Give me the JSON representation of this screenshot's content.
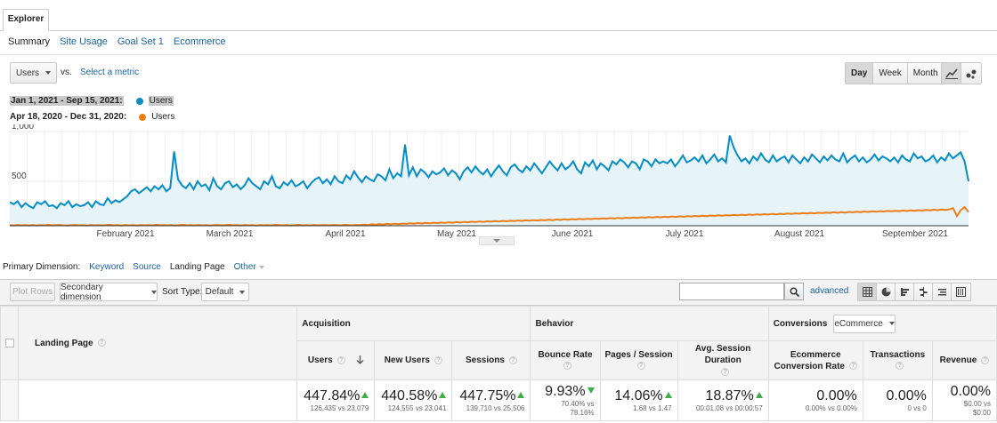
{
  "explorer_tab": "Explorer",
  "subtabs": [
    "Summary",
    "Site Usage",
    "Goal Set 1",
    "Ecommerce"
  ],
  "metric_select": "Users",
  "vs_label": "vs.",
  "select_metric": "Select a metric",
  "granularity": [
    "Day",
    "Week",
    "Month"
  ],
  "granularity_active": "Day",
  "legend": [
    {
      "range": "Jan 1, 2021 - Sep 15, 2021:",
      "metric": "Users",
      "color": "#058dc7"
    },
    {
      "range": "Apr 18, 2020 - Dec 31, 2020:",
      "metric": "Users",
      "color": "#ed7e17"
    }
  ],
  "chart_data": {
    "type": "line",
    "ylabels": [
      "1,000",
      "500"
    ],
    "y_ticks": [
      1000,
      500
    ],
    "ylim": [
      0,
      1000
    ],
    "x_tick_labels": [
      "February 2021",
      "March 2021",
      "April 2021",
      "May 2021",
      "June 2021",
      "July 2021",
      "August 2021",
      "September 2021"
    ],
    "series": [
      {
        "color": "#058dc7",
        "fill": "#e6f3f9",
        "values": [
          290,
          270,
          300,
          240,
          280,
          250,
          230,
          290,
          270,
          300,
          250,
          260,
          230,
          280,
          260,
          300,
          240,
          270,
          250,
          260,
          290,
          240,
          300,
          270,
          260,
          330,
          280,
          310,
          290,
          320,
          350,
          400,
          420,
          380,
          410,
          440,
          400,
          450,
          420,
          460,
          400,
          430,
          800,
          520,
          460,
          430,
          480,
          420,
          500,
          450,
          470,
          410,
          530,
          450,
          420,
          480,
          500,
          440,
          470,
          420,
          460,
          530,
          480,
          450,
          420,
          500,
          470,
          550,
          450,
          430,
          490,
          460,
          510,
          450,
          470,
          500,
          430,
          480,
          520,
          540,
          480,
          520,
          470,
          550,
          500,
          480,
          560,
          520,
          600,
          540,
          490,
          550,
          520,
          500,
          570,
          550,
          510,
          620,
          530,
          580,
          550,
          870,
          560,
          640,
          550,
          620,
          590,
          540,
          600,
          570,
          590,
          630,
          560,
          610,
          580,
          520,
          600,
          640,
          590,
          650,
          600,
          570,
          620,
          550,
          610,
          660,
          600,
          560,
          640,
          670,
          620,
          590,
          650,
          610,
          680,
          630,
          580,
          640,
          700,
          650,
          610,
          680,
          620,
          650,
          700,
          620,
          580,
          690,
          650,
          710,
          620,
          680,
          650,
          610,
          700,
          670,
          720,
          690,
          640,
          700,
          680,
          620,
          720,
          700,
          650,
          720,
          680,
          700,
          680,
          720,
          650,
          700,
          760,
          690,
          710,
          740,
          700,
          760,
          680,
          720,
          770,
          700,
          730,
          690,
          960,
          840,
          760,
          700,
          730,
          680,
          750,
          710,
          780,
          720,
          690,
          760,
          700,
          730,
          750,
          690,
          760,
          720,
          680,
          740,
          700,
          770,
          730,
          690,
          750,
          710,
          760,
          720,
          700,
          780,
          690,
          730,
          760,
          700,
          740,
          690,
          720,
          770,
          710,
          750,
          730,
          700,
          740,
          690,
          760,
          720,
          700,
          780,
          730,
          750,
          700,
          720,
          760,
          690,
          740,
          710,
          780,
          730,
          760,
          790,
          700,
          500
        ]
      },
      {
        "color": "#ed7e17",
        "fill": "none",
        "values": [
          60,
          55,
          62,
          58,
          60,
          57,
          62,
          55,
          60,
          58,
          63,
          57,
          60,
          62,
          58,
          56,
          60,
          62,
          58,
          60,
          55,
          62,
          58,
          61,
          57,
          60,
          63,
          58,
          60,
          56,
          62,
          58,
          60,
          55,
          62,
          58,
          60,
          57,
          63,
          59,
          60,
          58,
          62,
          55,
          60,
          63,
          58,
          60,
          57,
          62,
          58,
          61,
          55,
          60,
          62,
          58,
          60,
          63,
          58,
          60,
          56,
          62,
          58,
          60,
          55,
          62,
          58,
          60,
          57,
          63,
          60,
          58,
          62,
          55,
          60,
          63,
          58,
          60,
          57,
          62,
          58,
          61,
          60,
          58,
          62,
          60,
          57,
          63,
          60,
          58,
          62,
          60,
          65,
          62,
          68,
          64,
          70,
          66,
          72,
          68,
          74,
          70,
          75,
          72,
          78,
          74,
          80,
          76,
          82,
          78,
          84,
          80,
          86,
          82,
          88,
          84,
          90,
          86,
          92,
          88,
          94,
          90,
          96,
          92,
          98,
          95,
          100,
          96,
          102,
          98,
          104,
          100,
          106,
          102,
          108,
          104,
          110,
          106,
          112,
          108,
          114,
          110,
          116,
          112,
          118,
          114,
          120,
          116,
          122,
          118,
          124,
          120,
          126,
          122,
          128,
          124,
          130,
          126,
          132,
          128,
          134,
          130,
          136,
          132,
          138,
          134,
          140,
          136,
          142,
          138,
          144,
          140,
          146,
          142,
          148,
          144,
          150,
          146,
          152,
          148,
          154,
          150,
          156,
          152,
          158,
          154,
          160,
          156,
          162,
          158,
          164,
          160,
          166,
          162,
          168,
          164,
          170,
          166,
          172,
          168,
          174,
          170,
          176,
          172,
          178,
          174,
          180,
          176,
          182,
          178,
          184,
          180,
          186,
          182,
          188,
          184,
          190,
          186,
          192,
          188,
          194,
          190,
          196,
          192,
          198,
          194,
          200,
          196,
          202,
          198,
          204,
          200,
          206,
          202,
          208,
          204,
          210,
          206,
          212,
          208,
          214,
          210,
          216,
          212,
          218,
          230,
          150,
          210,
          240,
          190
        ]
      }
    ]
  },
  "primary_dimension": {
    "label": "Primary Dimension:",
    "options": [
      "Keyword",
      "Source",
      "Landing Page",
      "Other"
    ],
    "active": "Landing Page"
  },
  "toolbar": {
    "plot_rows": "Plot Rows",
    "secondary_dimension": "Secondary dimension",
    "sort_type_label": "Sort Type:",
    "sort_type": "Default",
    "advanced": "advanced",
    "search_value": ""
  },
  "table": {
    "dimension_header": "Landing Page",
    "groups": {
      "acquisition": "Acquisition",
      "behavior": "Behavior",
      "conversions": "Conversions",
      "conversions_select": "eCommerce"
    },
    "columns": [
      {
        "label": "Users",
        "big": "447.84%",
        "sub": "126,435 vs 23,079",
        "trend": "up"
      },
      {
        "label": "New Users",
        "big": "440.58%",
        "sub": "124,555 vs 23,041",
        "trend": "up"
      },
      {
        "label": "Sessions",
        "big": "447.75%",
        "sub": "139,710 vs 25,506",
        "trend": "up"
      },
      {
        "label": "Bounce Rate",
        "big": "9.93%",
        "sub": "70.40% vs 78.16%",
        "trend": "down"
      },
      {
        "label": "Pages / Session",
        "big": "14.06%",
        "sub": "1.68 vs 1.47",
        "trend": "up"
      },
      {
        "label": "Avg. Session Duration",
        "big": "18.87%",
        "sub": "00:01:08 vs 00:00:57",
        "trend": "up"
      },
      {
        "label": "Ecommerce Conversion Rate",
        "big": "0.00%",
        "sub": "0.00% vs 0.00%",
        "trend": "none"
      },
      {
        "label": "Transactions",
        "big": "0.00%",
        "sub": "0 vs 0",
        "trend": "none"
      },
      {
        "label": "Revenue",
        "big": "0.00%",
        "sub": "$0.00 vs $0.00",
        "trend": "none"
      }
    ]
  }
}
